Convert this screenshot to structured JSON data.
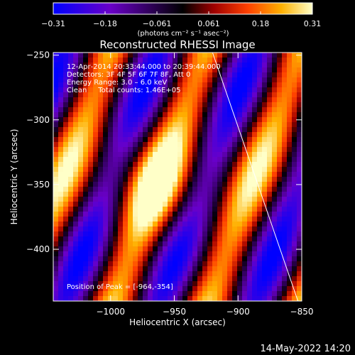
{
  "chart_data": {
    "type": "heatmap",
    "title": "Reconstructed RHESSI Image",
    "xlabel": "Heliocentric X (arcsec)",
    "ylabel": "Heliocentric Y (arcsec)",
    "xlim": [
      -1045,
      -850
    ],
    "ylim": [
      -440,
      -248
    ],
    "x_ticks": [
      -1000,
      -950,
      -900,
      -850
    ],
    "y_ticks": [
      -400,
      -350,
      -300,
      -250
    ],
    "x_tick_labels": [
      "−1000",
      "−950",
      "−900",
      "−850"
    ],
    "y_tick_labels": [
      "−400",
      "−350",
      "−300",
      "−250"
    ],
    "colorbar": {
      "min": -0.31,
      "max": 0.31,
      "tick_labels": [
        "−0.31",
        "−0.18",
        "−0.061",
        "0.061",
        "0.18",
        "0.31"
      ],
      "unit_label": "(photons cm⁻² s⁻¹ asec⁻²)",
      "colormap": [
        "#0000ff",
        "#6a00c8",
        "#000000",
        "#a00000",
        "#ff4000",
        "#ffb000",
        "#ffffc8"
      ]
    },
    "info_lines": [
      "12‑Apr‑2014 20:33:44.000 to 20:39:44.000",
      "Detectors: 3F 4F 5F 6F 7F 8F, Att 0",
      "Energy Range: 3.0 – 6.0 keV",
      "Clean     Total counts: 1.46E+05"
    ],
    "peak_label": "Position of Peak = [-964,-354]",
    "peak_position": [
      -964,
      -354
    ],
    "limb_line": {
      "x": [
        -920,
        -853
      ],
      "y": [
        -248,
        -440
      ]
    },
    "grid": false
  },
  "footer": {
    "timestamp": "14‑May‑2022 14:20"
  }
}
